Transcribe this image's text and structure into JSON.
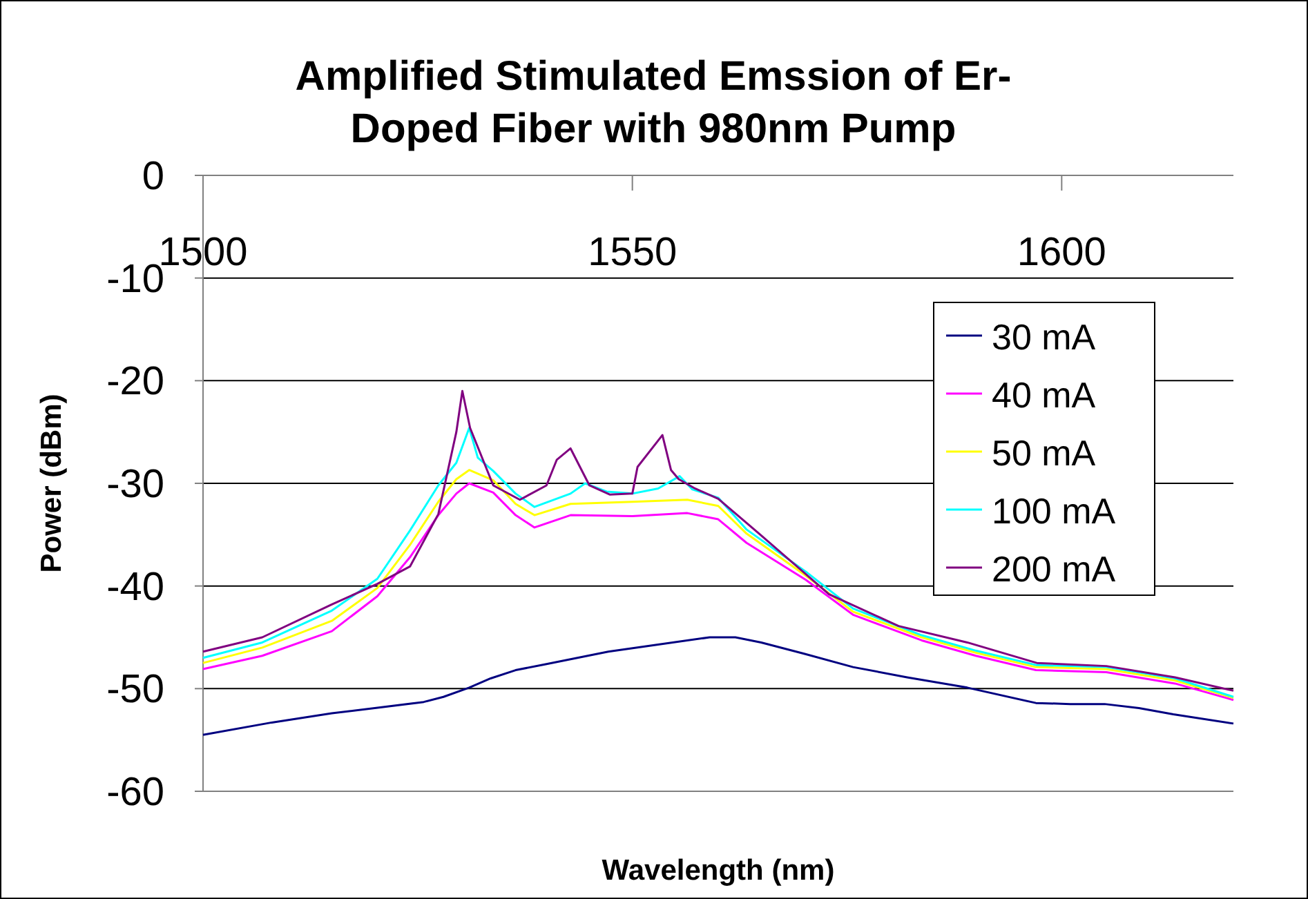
{
  "chart_data": {
    "type": "line",
    "title": "Amplified Stimulated Emssion of Er-Doped Fiber with 980nm Pump",
    "xlabel": "Wavelength (nm)",
    "ylabel": "Power (dBm)",
    "xlim": [
      1500,
      1620
    ],
    "xticks": [
      1500,
      1550,
      1600
    ],
    "ylim": [
      -60,
      0
    ],
    "yticks": [
      0,
      -10,
      -20,
      -30,
      -40,
      -50,
      -60
    ],
    "grid": "y",
    "legend": "right",
    "line_style": "solid",
    "series": [
      {
        "name": "30 mA",
        "color": "#000080",
        "x": [
          1500,
          1508,
          1515,
          1520,
          1525.7,
          1528,
          1531,
          1533.5,
          1536.4,
          1540,
          1547.2,
          1553,
          1559,
          1562,
          1565,
          1570,
          1575.7,
          1582,
          1589,
          1597,
          1601,
          1605,
          1609,
          1613,
          1620
        ],
        "values": [
          -54.5,
          -53.3,
          -52.4,
          -51.9,
          -51.3,
          -50.8,
          -49.9,
          -49.0,
          -48.2,
          -47.6,
          -46.4,
          -45.7,
          -45.0,
          -45.0,
          -45.5,
          -46.6,
          -47.9,
          -48.9,
          -49.9,
          -51.4,
          -51.5,
          -51.5,
          -51.9,
          -52.5,
          -53.4
        ]
      },
      {
        "name": "40 mA",
        "color": "#ff00ff",
        "x": [
          1500,
          1506.9,
          1515,
          1520.3,
          1524.1,
          1527.4,
          1529.5,
          1531,
          1533.8,
          1536.4,
          1538.6,
          1542.8,
          1550,
          1556.4,
          1560,
          1563.3,
          1570.2,
          1575.7,
          1583.7,
          1590,
          1597,
          1605.2,
          1613.2,
          1620
        ],
        "values": [
          -48.1,
          -46.8,
          -44.4,
          -41.0,
          -37.2,
          -33.1,
          -31.0,
          -30.0,
          -30.9,
          -33.1,
          -34.3,
          -33.1,
          -33.2,
          -32.9,
          -33.5,
          -35.8,
          -39.4,
          -42.8,
          -45.3,
          -46.8,
          -48.2,
          -48.4,
          -49.5,
          -51.1
        ]
      },
      {
        "name": "50 mA",
        "color": "#ffff00",
        "x": [
          1500,
          1506.9,
          1515,
          1520.3,
          1524.1,
          1527.4,
          1529.5,
          1531,
          1533.8,
          1536.4,
          1538.6,
          1542.8,
          1550,
          1556.4,
          1560,
          1563.3,
          1570.2,
          1575.7,
          1583.7,
          1590,
          1597,
          1605.2,
          1613.2,
          1620
        ],
        "values": [
          -47.5,
          -46.0,
          -43.4,
          -40.2,
          -36.0,
          -31.8,
          -29.6,
          -28.7,
          -29.7,
          -32.0,
          -33.1,
          -32.0,
          -31.8,
          -31.6,
          -32.2,
          -34.9,
          -39.0,
          -42.5,
          -45.0,
          -46.5,
          -47.9,
          -48.1,
          -49.2,
          -50.9
        ]
      },
      {
        "name": "100 mA",
        "color": "#00ffff",
        "x": [
          1500,
          1506.9,
          1515,
          1520.3,
          1524.1,
          1527.4,
          1529.5,
          1531,
          1532,
          1533.8,
          1536.4,
          1538.6,
          1542.8,
          1544.5,
          1547,
          1550,
          1553,
          1555.5,
          1557,
          1560,
          1563.3,
          1570.2,
          1575.7,
          1583.7,
          1590,
          1597,
          1605.2,
          1613.2,
          1620
        ],
        "values": [
          -47.0,
          -45.5,
          -42.4,
          -39.3,
          -34.6,
          -30.2,
          -28.0,
          -24.6,
          -27.5,
          -28.8,
          -31.0,
          -32.3,
          -31.0,
          -30.0,
          -30.8,
          -31.0,
          -30.5,
          -29.3,
          -30.6,
          -31.4,
          -34.5,
          -38.6,
          -42.2,
          -44.8,
          -46.3,
          -47.7,
          -47.9,
          -49.0,
          -50.8
        ]
      },
      {
        "name": "200 mA",
        "color": "#800080",
        "x": [
          1500,
          1506.9,
          1515,
          1520.3,
          1524.1,
          1527.4,
          1529.5,
          1530.2,
          1531.1,
          1533.8,
          1536.9,
          1540,
          1541.2,
          1542.8,
          1545,
          1547.4,
          1550,
          1550.6,
          1553.5,
          1554.5,
          1555.4,
          1557.3,
          1560,
          1564.9,
          1572.9,
          1581,
          1589,
          1597.1,
          1605.2,
          1613.2,
          1620
        ],
        "values": [
          -46.4,
          -45.0,
          -41.8,
          -39.8,
          -38.1,
          -33.0,
          -25.0,
          -21.0,
          -24.6,
          -30.2,
          -31.6,
          -30.2,
          -27.7,
          -26.6,
          -30.2,
          -31.1,
          -31.0,
          -28.4,
          -25.3,
          -28.7,
          -29.6,
          -30.5,
          -31.5,
          -35.0,
          -40.8,
          -43.9,
          -45.5,
          -47.5,
          -47.8,
          -48.9,
          -50.2
        ]
      }
    ]
  }
}
